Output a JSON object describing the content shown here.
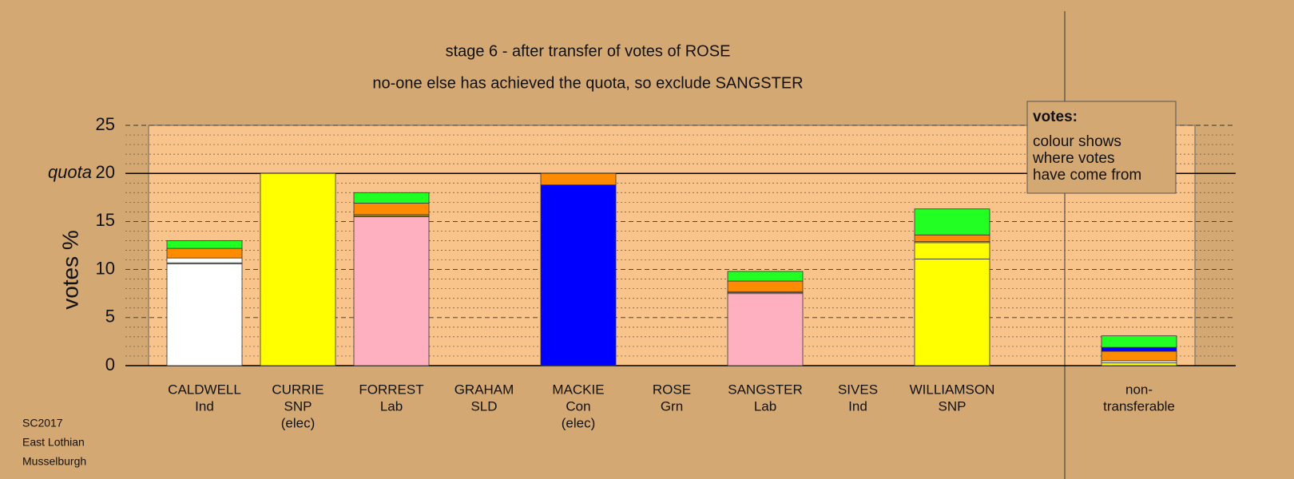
{
  "chart_data": {
    "type": "stacked-bar",
    "title": "stage 6 - after transfer of votes of ROSE",
    "subtitle": "no-one else has achieved the quota, so exclude SANGSTER",
    "y_label": "votes %",
    "quota": 20,
    "quota_label": "quota",
    "ylim": [
      0,
      25
    ],
    "yticks": [
      0,
      5,
      10,
      15,
      20,
      25
    ],
    "minor_yticks": [
      1,
      2,
      3,
      4,
      6,
      7,
      8,
      9,
      11,
      12,
      13,
      14,
      16,
      17,
      18,
      19,
      21,
      22,
      23,
      24
    ],
    "grid": true,
    "categories": [
      [
        "CALDWELL",
        "Ind"
      ],
      [
        "CURRIE",
        "SNP",
        "(elec)"
      ],
      [
        "FORREST",
        "Lab"
      ],
      [
        "GRAHAM",
        "SLD"
      ],
      [
        "MACKIE",
        "Con",
        "(elec)"
      ],
      [
        "ROSE",
        "Grn"
      ],
      [
        "SANGSTER",
        "Lab"
      ],
      [
        "SIVES",
        "Ind"
      ],
      [
        "WILLIAMSON",
        "SNP"
      ],
      [
        "non-",
        "transferable"
      ]
    ],
    "series": [
      {
        "colors": [
          "#ffffff",
          "#ffff00",
          "#ffb0c0",
          "#ff8c00",
          "#0000ff",
          "#22ff22",
          "#ffb0c0",
          "#ffffff",
          "#ffff00",
          "#999999"
        ],
        "values": [
          10.6,
          20,
          15.5,
          0,
          18.8,
          0,
          7.5,
          0,
          11.1,
          0
        ]
      },
      {
        "color": "#ffff00",
        "values": [
          0.1,
          0,
          0.1,
          0,
          0,
          0,
          0.1,
          0,
          1.7,
          0.3
        ]
      },
      {
        "color": "#ffffff",
        "values": [
          0.5,
          0,
          0.1,
          0,
          0,
          0,
          0.1,
          0,
          0.1,
          0.2
        ]
      },
      {
        "color": "#ff8c00",
        "values": [
          1.0,
          0,
          1.2,
          0,
          1.2,
          0,
          1.1,
          0,
          0.7,
          1.0
        ]
      },
      {
        "color": "#0000ff",
        "values": [
          0,
          0,
          0,
          0,
          0,
          0,
          0,
          0,
          0,
          0.4
        ]
      },
      {
        "color": "#22ff22",
        "values": [
          0.8,
          0,
          1.1,
          0,
          0,
          0,
          1.0,
          0,
          2.7,
          1.2
        ]
      }
    ],
    "legend_box": {
      "heading": "votes:",
      "lines": [
        "colour shows",
        "where votes",
        "have come from"
      ]
    },
    "footer": [
      "SC2017",
      "East Lothian",
      "Musselburgh"
    ]
  }
}
